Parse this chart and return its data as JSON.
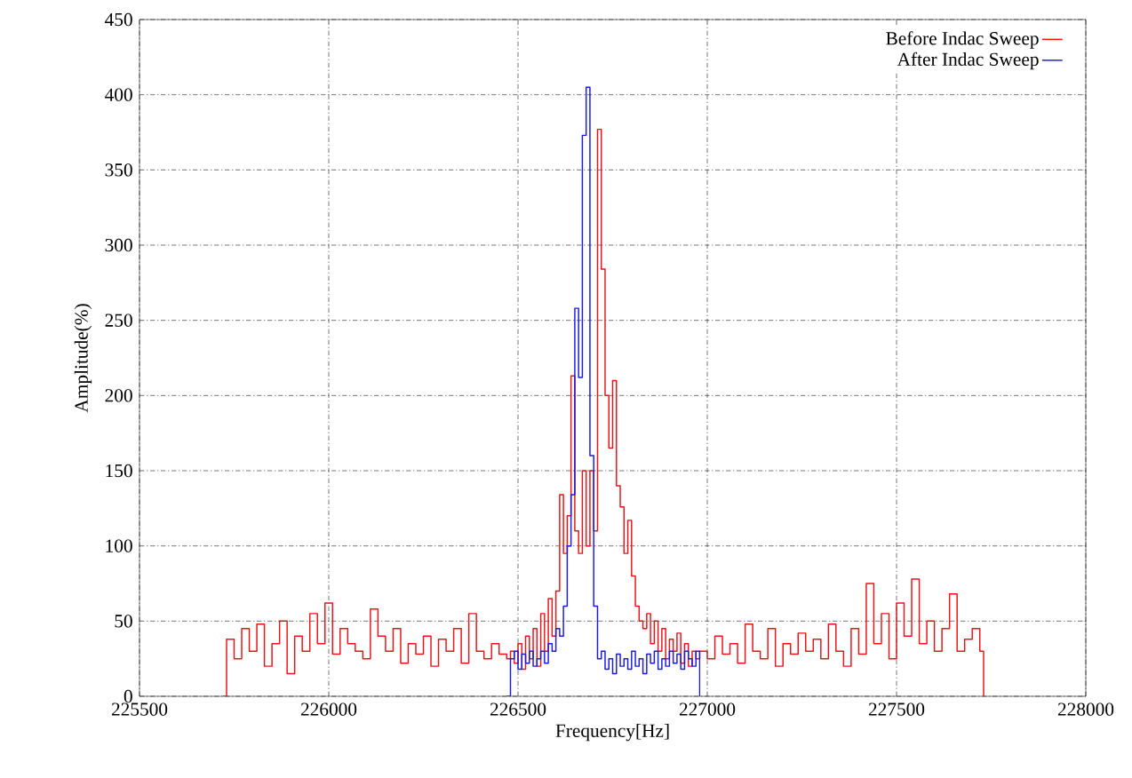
{
  "chart_data": {
    "type": "step",
    "xlabel": "Frequency[Hz]",
    "ylabel": "Amplitude(%)",
    "xlim": [
      225500,
      228000
    ],
    "ylim": [
      0,
      450
    ],
    "xticks": [
      225500,
      226000,
      226500,
      227000,
      227500,
      228000
    ],
    "yticks": [
      0,
      50,
      100,
      150,
      200,
      250,
      300,
      350,
      400,
      450
    ],
    "grid": true,
    "legend": "top right",
    "marker": "none",
    "line_style": "solid",
    "series": [
      {
        "name": "Before Indac Sweep",
        "color": "#e8141a",
        "x": [
          225720,
          225730,
          225750,
          225770,
          225790,
          225810,
          225830,
          225850,
          225870,
          225890,
          225910,
          225930,
          225950,
          225970,
          225990,
          226010,
          226030,
          226050,
          226070,
          226090,
          226110,
          226130,
          226150,
          226170,
          226190,
          226210,
          226230,
          226250,
          226270,
          226290,
          226310,
          226330,
          226350,
          226370,
          226390,
          226410,
          226430,
          226450,
          226470,
          226480,
          226490,
          226500,
          226510,
          226520,
          226530,
          226540,
          226550,
          226560,
          226570,
          226580,
          226590,
          226600,
          226610,
          226620,
          226630,
          226640,
          226650,
          226660,
          226670,
          226680,
          226690,
          226700,
          226710,
          226720,
          226730,
          226740,
          226750,
          226760,
          226770,
          226780,
          226790,
          226800,
          226810,
          226820,
          226830,
          226840,
          226850,
          226860,
          226870,
          226880,
          226890,
          226900,
          226910,
          226920,
          226930,
          226940,
          226950,
          226960,
          226970,
          226980,
          227000,
          227020,
          227040,
          227060,
          227080,
          227100,
          227120,
          227140,
          227160,
          227180,
          227200,
          227220,
          227240,
          227260,
          227280,
          227300,
          227320,
          227340,
          227360,
          227380,
          227400,
          227420,
          227440,
          227460,
          227480,
          227500,
          227520,
          227540,
          227560,
          227580,
          227600,
          227620,
          227640,
          227660,
          227680,
          227700,
          227720,
          227730
        ],
        "values": [
          0,
          38,
          25,
          45,
          30,
          48,
          20,
          35,
          50,
          15,
          40,
          30,
          55,
          35,
          62,
          28,
          45,
          35,
          30,
          25,
          58,
          40,
          30,
          45,
          22,
          35,
          28,
          40,
          20,
          38,
          30,
          45,
          22,
          55,
          30,
          25,
          35,
          28,
          25,
          30,
          22,
          35,
          18,
          40,
          25,
          45,
          20,
          55,
          30,
          65,
          40,
          70,
          134,
          95,
          120,
          213,
          110,
          95,
          150,
          100,
          150,
          110,
          377,
          284,
          200,
          165,
          210,
          140,
          126,
          95,
          117,
          80,
          60,
          50,
          45,
          55,
          35,
          50,
          30,
          45,
          25,
          38,
          30,
          42,
          22,
          35,
          20,
          30,
          25,
          30,
          25,
          40,
          28,
          35,
          22,
          48,
          30,
          25,
          45,
          20,
          35,
          28,
          42,
          30,
          38,
          25,
          48,
          30,
          20,
          45,
          28,
          75,
          35,
          55,
          25,
          62,
          40,
          78,
          35,
          50,
          30,
          45,
          68,
          30,
          38,
          45,
          30,
          0
        ]
      },
      {
        "name": "After Indac Sweep",
        "color": "#1a1ae0",
        "x": [
          226470,
          226480,
          226490,
          226500,
          226510,
          226520,
          226530,
          226540,
          226550,
          226560,
          226570,
          226580,
          226590,
          226600,
          226610,
          226620,
          226630,
          226640,
          226650,
          226660,
          226670,
          226680,
          226690,
          226700,
          226710,
          226720,
          226730,
          226740,
          226750,
          226760,
          226770,
          226780,
          226790,
          226800,
          226810,
          226820,
          226830,
          226840,
          226850,
          226860,
          226870,
          226880,
          226890,
          226900,
          226910,
          226920,
          226930,
          226940,
          226950,
          226960,
          226970,
          226980
        ],
        "values": [
          0,
          25,
          30,
          18,
          28,
          22,
          30,
          20,
          25,
          30,
          22,
          35,
          30,
          45,
          40,
          60,
          100,
          134,
          258,
          212,
          373,
          405,
          160,
          60,
          25,
          30,
          18,
          25,
          15,
          28,
          20,
          25,
          18,
          30,
          20,
          25,
          15,
          28,
          22,
          30,
          18,
          25,
          20,
          30,
          22,
          28,
          18,
          30,
          25,
          20,
          30,
          0
        ]
      }
    ]
  }
}
